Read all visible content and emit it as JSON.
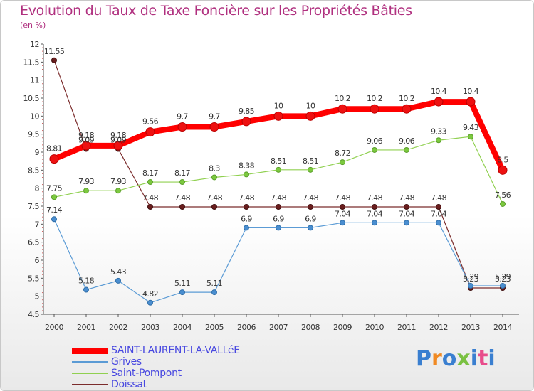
{
  "title": "Evolution du Taux de Taxe Foncière sur les Propriétés Bâties",
  "unit_label": "(en %)",
  "logo_text": "Proxiti",
  "chart_data": {
    "type": "line",
    "title": "Evolution du Taux de Taxe Foncière sur les Propriétés Bâties",
    "ylabel": "(en %)",
    "xlabel": "",
    "ylim": [
      4.5,
      12
    ],
    "yticks": [
      "4.5",
      "5",
      "5.5",
      "6",
      "6.5",
      "7",
      "7.5",
      "8",
      "8.5",
      "9",
      "9.5",
      "10",
      "10.5",
      "11",
      "11.5",
      "12"
    ],
    "grid": false,
    "x": [
      "2000",
      "2001",
      "2002",
      "2003",
      "2004",
      "2005",
      "2006",
      "2007",
      "2008",
      "2009",
      "2010",
      "2011",
      "2012",
      "2013",
      "2014"
    ],
    "series": [
      {
        "name": "SAINT-LAURENT-LA-VALLéE",
        "color": "#ff0000",
        "values": [
          8.81,
          9.18,
          9.18,
          9.56,
          9.7,
          9.7,
          9.85,
          10,
          10,
          10.2,
          10.2,
          10.2,
          10.4,
          10.4,
          8.5
        ],
        "labels": [
          "8.81",
          "9.18",
          "9.18",
          "9.56",
          "9.7",
          "9.7",
          "9.85",
          "10",
          "10",
          "10.2",
          "10.2",
          "10.2",
          "10.4",
          "10.4",
          "8.5"
        ]
      },
      {
        "name": "Grives",
        "color": "#5b9bd5",
        "values": [
          7.14,
          5.18,
          5.43,
          4.82,
          5.11,
          5.11,
          6.9,
          6.9,
          6.9,
          7.04,
          7.04,
          7.04,
          7.04,
          5.29,
          5.29
        ],
        "labels": [
          "7.14",
          "5.18",
          "5.43",
          "4.82",
          "5.11",
          "5.11",
          "6.9",
          "6.9",
          "6.9",
          "7.04",
          "7.04",
          "7.04",
          "7.04",
          "5.29",
          "5.29"
        ]
      },
      {
        "name": "Saint-Pompont",
        "color": "#90d050",
        "values": [
          7.75,
          7.93,
          7.93,
          8.17,
          8.17,
          8.3,
          8.38,
          8.51,
          8.51,
          8.72,
          9.06,
          9.06,
          9.33,
          9.43,
          7.56
        ],
        "labels": [
          "7.75",
          "7.93",
          "7.93",
          "8.17",
          "8.17",
          "8.3",
          "8.38",
          "8.51",
          "8.51",
          "8.72",
          "9.06",
          "9.06",
          "9.33",
          "9.43",
          "7.56"
        ]
      },
      {
        "name": "Doissat",
        "color": "#7b2c2c",
        "values": [
          11.55,
          9.09,
          9.09,
          7.48,
          7.48,
          7.48,
          7.48,
          7.48,
          7.48,
          7.48,
          7.48,
          7.48,
          7.48,
          5.23,
          5.23
        ],
        "labels": [
          "11.55",
          "9.09",
          "9.09",
          "7.48",
          "7.48",
          "7.48",
          "7.48",
          "7.48",
          "7.48",
          "7.48",
          "7.48",
          "7.48",
          "7.48",
          "5.23",
          "5.23"
        ]
      }
    ]
  },
  "legend": [
    {
      "label": "SAINT-LAURENT-LA-VALLéE",
      "color": "#ff0000"
    },
    {
      "label": "Grives",
      "color": "#5b9bd5"
    },
    {
      "label": "Saint-Pompont",
      "color": "#90d050"
    },
    {
      "label": "Doissat",
      "color": "#7b2c2c"
    }
  ]
}
